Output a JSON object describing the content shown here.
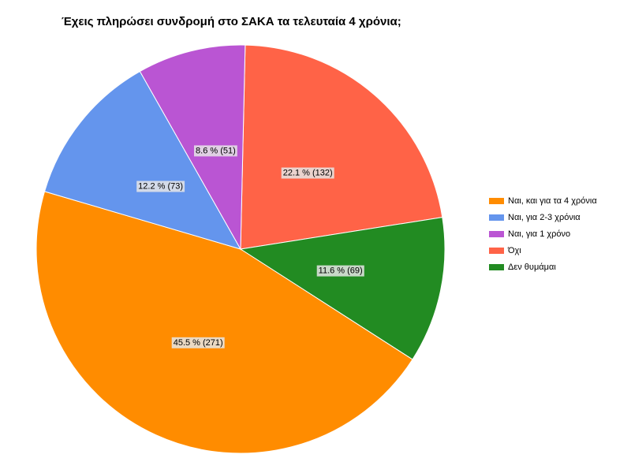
{
  "chart_data": {
    "type": "pie",
    "title": "Έχεις πληρώσει συνδρομή στο ΣΑΚΑ τα τελευταία 4 χρόνια;",
    "legend_position": "right",
    "slices": [
      {
        "label": "Όχι",
        "value": 132,
        "percent_label": "22.1 % (132)",
        "color": "#ff6347"
      },
      {
        "label": "Δεν θυμάμαι",
        "value": 69,
        "percent_label": "11.6 % (69)",
        "color": "#228b22"
      },
      {
        "label": "Ναι, και για τα 4 χρόνια",
        "value": 271,
        "percent_label": "45.5 % (271)",
        "color": "#ff8c00"
      },
      {
        "label": "Ναι, για 2-3 χρόνια",
        "value": 73,
        "percent_label": "12.2 % (73)",
        "color": "#6495ed"
      },
      {
        "label": "Ναι, για 1 χρόνο",
        "value": 51,
        "percent_label": "8.6 % (51)",
        "color": "#ba55d3"
      }
    ],
    "legend": [
      {
        "label": "Ναι, και για τα 4 χρόνια",
        "color": "#ff8c00"
      },
      {
        "label": "Ναι, για 2-3 χρόνια",
        "color": "#6495ed"
      },
      {
        "label": "Ναι, για 1 χρόνο",
        "color": "#ba55d3"
      },
      {
        "label": "Όχι",
        "color": "#ff6347"
      },
      {
        "label": "Δεν θυμάμαι",
        "color": "#228b22"
      }
    ]
  }
}
